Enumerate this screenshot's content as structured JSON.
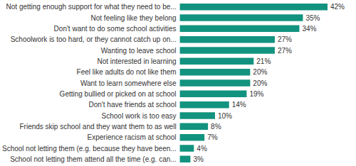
{
  "chart_data": {
    "type": "bar",
    "orientation": "horizontal",
    "categories": [
      "Not getting enough support for what they need to be...",
      "Not feeling like they belong",
      "Don't want to do some school activities",
      "Schoolwork is too hard, or they cannot catch up on...",
      "Wanting to leave school",
      "Not interested in learning",
      "Feel like adults do not like them",
      "Want to learn somewhere else",
      "Getting bullied or picked on at school",
      "Don't have friends at school",
      "School work is too easy",
      "Friends skip school and they want them to as well",
      "Experience racism at school",
      "School not letting them (e.g. because they have been...",
      "School not letting them attend all the time (e.g. can..."
    ],
    "values": [
      42,
      35,
      34,
      27,
      27,
      21,
      20,
      20,
      19,
      14,
      10,
      8,
      7,
      4,
      3
    ],
    "value_labels": [
      "42%",
      "35%",
      "34%",
      "27%",
      "27%",
      "21%",
      "20%",
      "20%",
      "19%",
      "14%",
      "10%",
      "8%",
      "7%",
      "4%",
      "3%"
    ],
    "color": "#12937f",
    "data_labels": true,
    "tick_labels": "y",
    "grid": false
  }
}
